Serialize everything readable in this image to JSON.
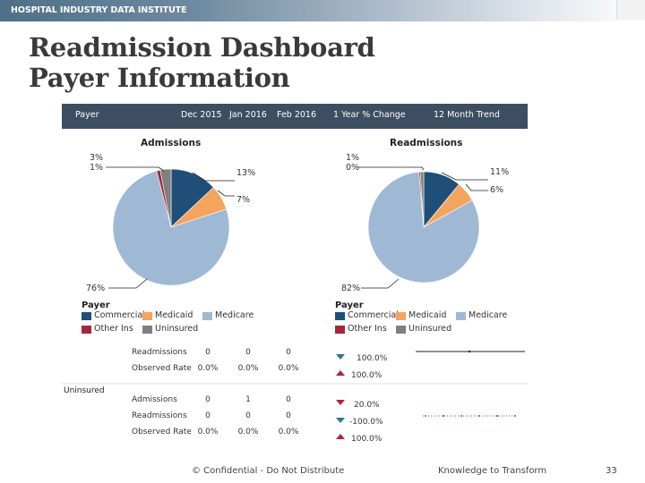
{
  "header": {
    "brand": "HOSPITAL INDUSTRY DATA INSTITUTE"
  },
  "title": {
    "line1": "Readmission Dashboard",
    "line2": "Payer Information"
  },
  "panel": {
    "columns": [
      "Payer",
      "Dec 2015",
      "Jan 2016",
      "Feb 2016",
      "1 Year % Change",
      "12 Month Trend"
    ],
    "pies": [
      {
        "title": "Admissions",
        "slices": [
          {
            "name": "Commercial",
            "value": 13
          },
          {
            "name": "Medicaid",
            "value": 7
          },
          {
            "name": "Medicare",
            "value": 76
          },
          {
            "name": "Other Ins",
            "value": 1
          },
          {
            "name": "Uninsured",
            "value": 3
          }
        ],
        "labels": {
          "uninsured": "3%",
          "other_ins": "1%",
          "commercial": "13%",
          "medicaid": "7%",
          "medicare": "76%"
        }
      },
      {
        "title": "Readmissions",
        "slices": [
          {
            "name": "Commercial",
            "value": 11
          },
          {
            "name": "Medicaid",
            "value": 6
          },
          {
            "name": "Medicare",
            "value": 82
          },
          {
            "name": "Other Ins",
            "value": 0.4
          },
          {
            "name": "Uninsured",
            "value": 1
          }
        ],
        "labels": {
          "uninsured": "1%",
          "other_ins": "0%",
          "commercial": "11%",
          "medicaid": "6%",
          "medicare": "82%"
        }
      }
    ],
    "legend": {
      "title": "Payer",
      "items": [
        "Commercial",
        "Medicaid",
        "Medicare",
        "Other Ins",
        "Uninsured"
      ],
      "colors": [
        "#1f4e79",
        "#f4a45c",
        "#9fb9d4",
        "#a6263f",
        "#7f7f7f"
      ]
    },
    "other_ins_rows": [
      {
        "label": "Readmissions",
        "values": [
          "0",
          "0",
          "0"
        ],
        "change": "100.0%"
      },
      {
        "label": "Observed Rate",
        "values": [
          "0.0%",
          "0.0%",
          "0.0%"
        ],
        "change": "100.0%"
      }
    ],
    "uninsured": {
      "label": "Uninsured",
      "rows": [
        {
          "label": "Admissions",
          "values": [
            "0",
            "1",
            "0"
          ],
          "change": "20.0%"
        },
        {
          "label": "Readmissions",
          "values": [
            "0",
            "0",
            "0"
          ],
          "change": "-100.0%"
        },
        {
          "label": "Observed Rate",
          "values": [
            "0.0%",
            "0.0%",
            "0.0%"
          ],
          "change": "100.0%"
        }
      ]
    }
  },
  "footer": {
    "left": "© Confidential - Do Not Distribute",
    "center": "Knowledge to Transform",
    "page": "33"
  }
}
